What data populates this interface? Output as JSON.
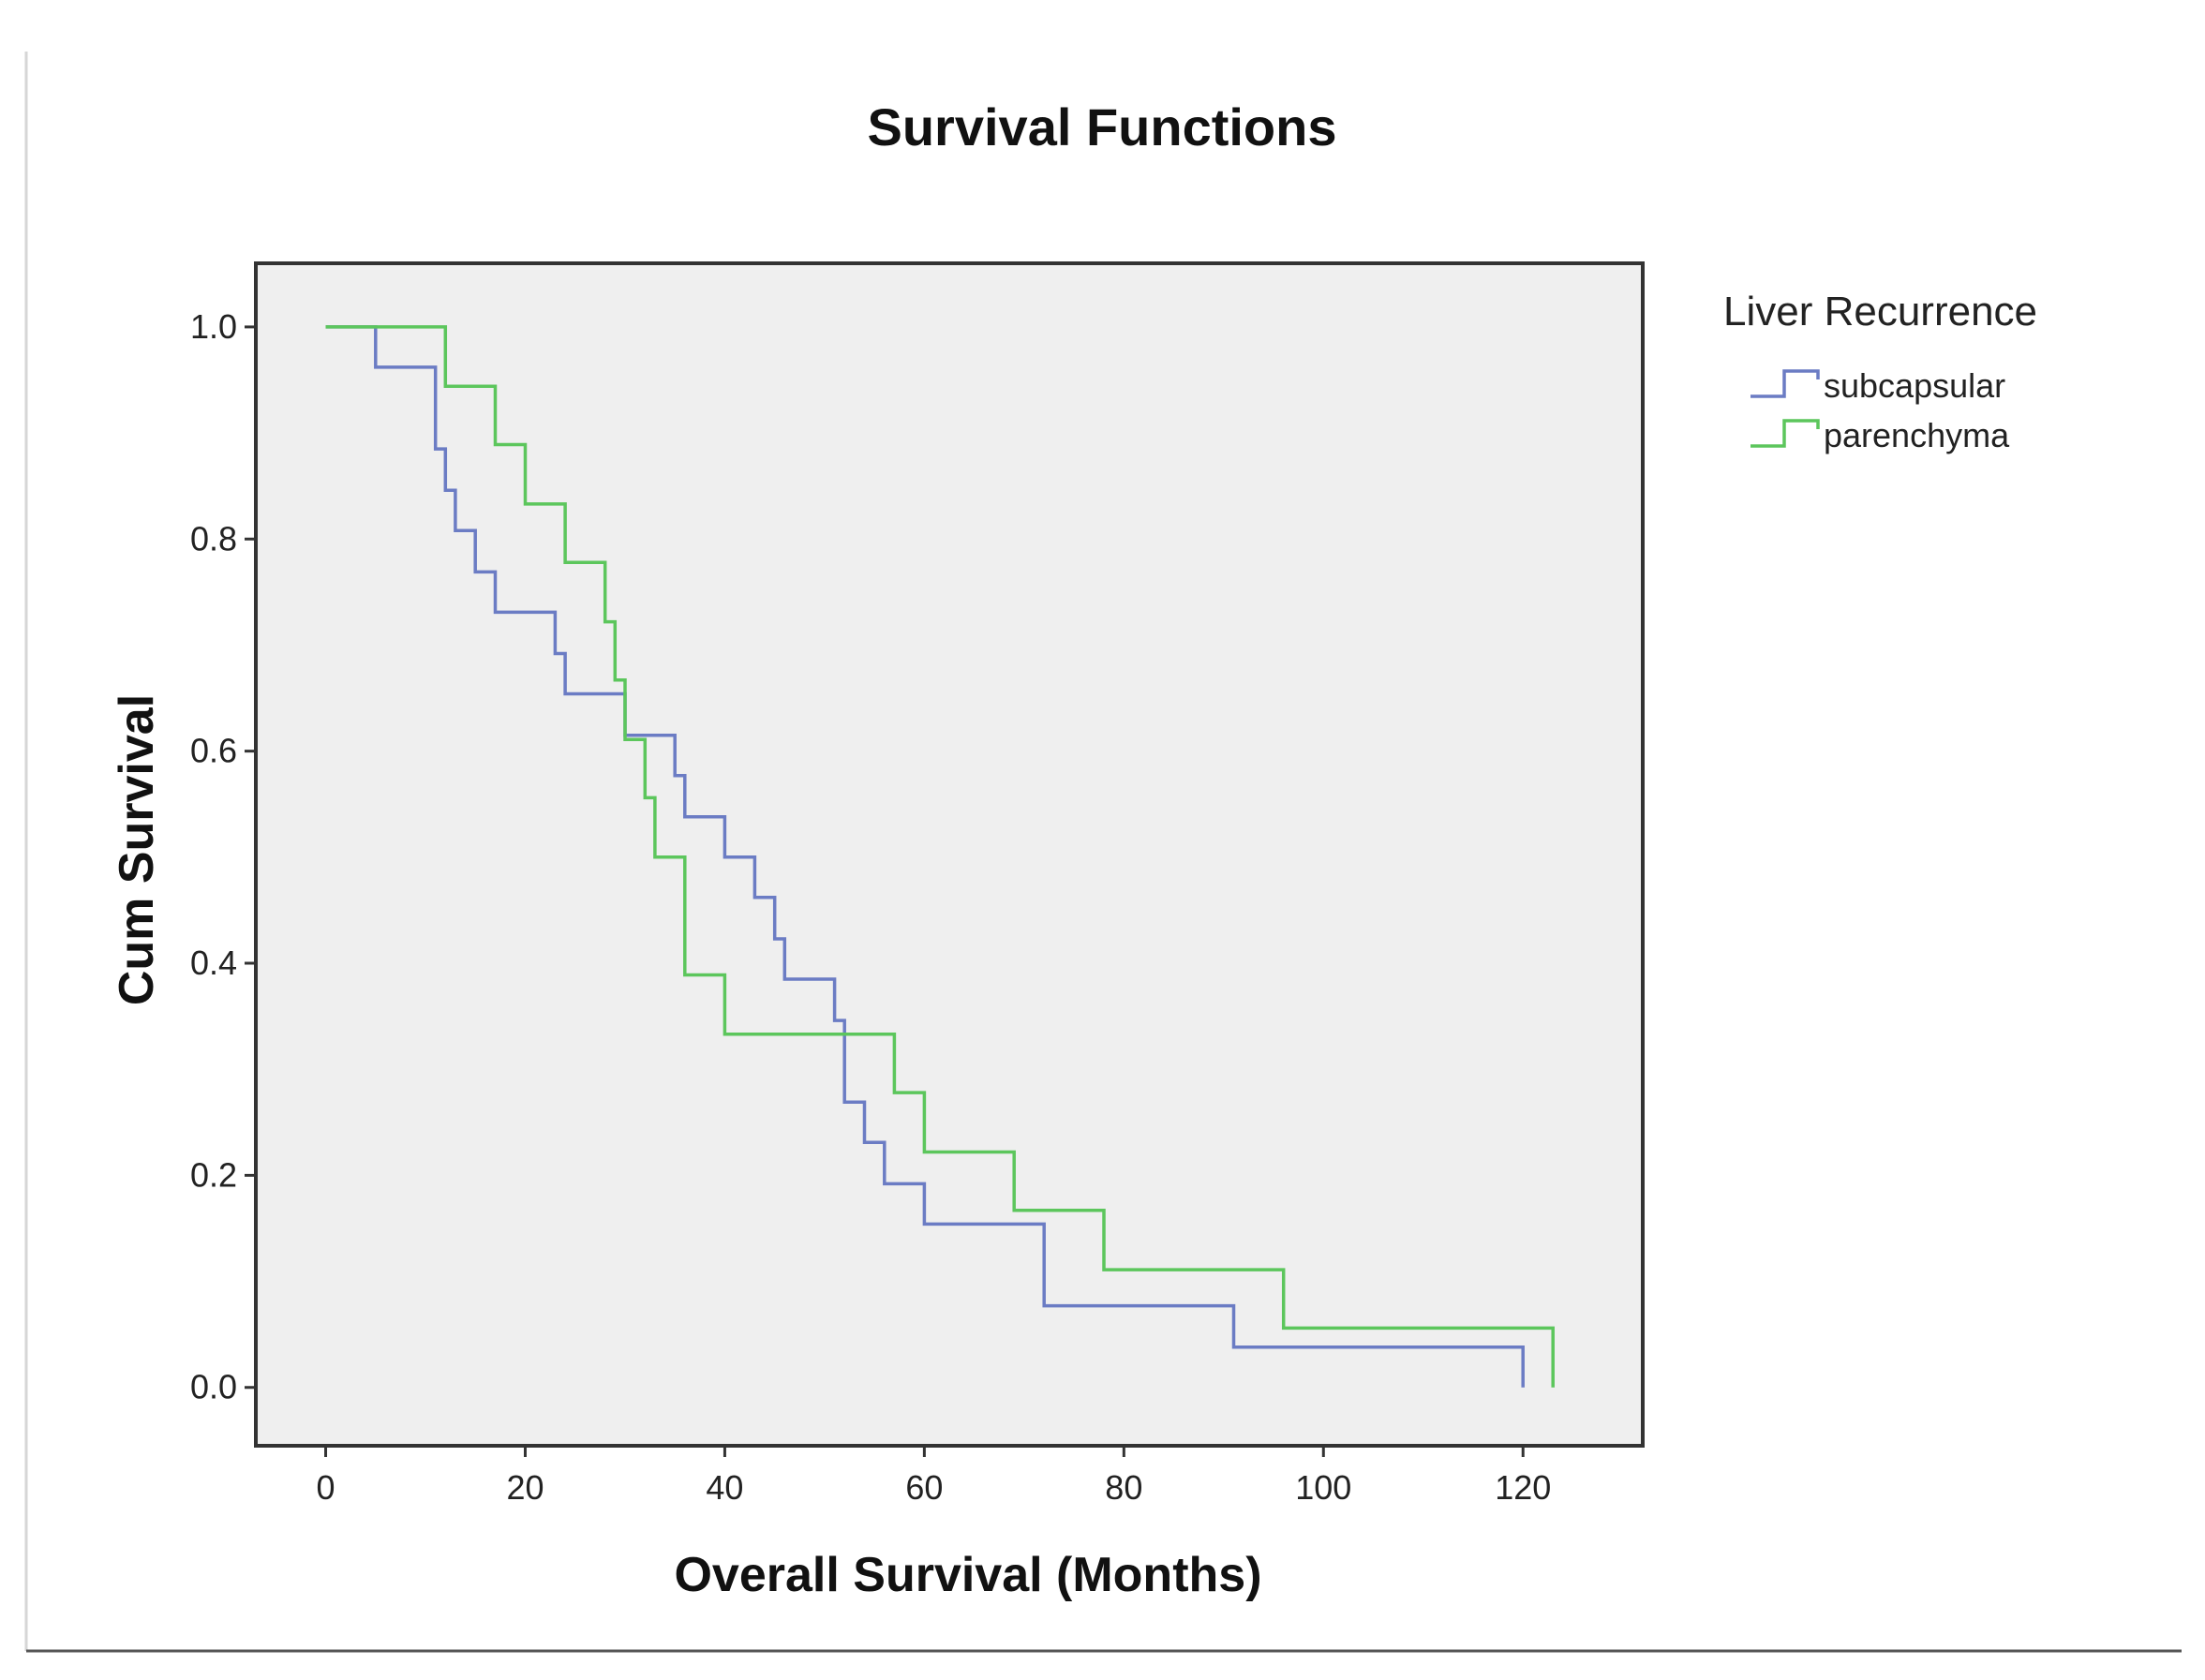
{
  "chart_data": {
    "type": "line",
    "subtype": "kaplan-meier-step",
    "title": "Survival Functions",
    "xlabel": "Overall Survival (Months)",
    "ylabel": "Cum Survival",
    "xlim": [
      -7,
      132
    ],
    "ylim": [
      -0.055,
      1.06
    ],
    "xticks": [
      0,
      20,
      40,
      60,
      80,
      100,
      120
    ],
    "xtick_labels": [
      "0",
      "20",
      "40",
      "60",
      "80",
      "100",
      "120"
    ],
    "yticks": [
      0.0,
      0.2,
      0.4,
      0.6,
      0.8,
      1.0
    ],
    "ytick_labels": [
      "0.0",
      "0.2",
      "0.4",
      "0.6",
      "0.8",
      "1.0"
    ],
    "grid": false,
    "legend": {
      "title": "Liver Recurrence",
      "position": "right"
    },
    "series": [
      {
        "name": "subcapsular",
        "color": "#6b7cc4",
        "points": [
          [
            0,
            1.0
          ],
          [
            5,
            1.0
          ],
          [
            5,
            0.962
          ],
          [
            11,
            0.962
          ],
          [
            11,
            0.885
          ],
          [
            12,
            0.885
          ],
          [
            12,
            0.846
          ],
          [
            13,
            0.846
          ],
          [
            13,
            0.808
          ],
          [
            15,
            0.808
          ],
          [
            15,
            0.769
          ],
          [
            17,
            0.769
          ],
          [
            17,
            0.731
          ],
          [
            23,
            0.731
          ],
          [
            23,
            0.692
          ],
          [
            24,
            0.692
          ],
          [
            24,
            0.654
          ],
          [
            30,
            0.654
          ],
          [
            30,
            0.615
          ],
          [
            35,
            0.615
          ],
          [
            35,
            0.577
          ],
          [
            36,
            0.577
          ],
          [
            36,
            0.538
          ],
          [
            40,
            0.538
          ],
          [
            40,
            0.5
          ],
          [
            43,
            0.5
          ],
          [
            43,
            0.462
          ],
          [
            45,
            0.462
          ],
          [
            45,
            0.423
          ],
          [
            46,
            0.423
          ],
          [
            46,
            0.385
          ],
          [
            51,
            0.385
          ],
          [
            51,
            0.346
          ],
          [
            52,
            0.346
          ],
          [
            52,
            0.269
          ],
          [
            54,
            0.269
          ],
          [
            54,
            0.231
          ],
          [
            56,
            0.231
          ],
          [
            56,
            0.192
          ],
          [
            60,
            0.192
          ],
          [
            60,
            0.154
          ],
          [
            72,
            0.154
          ],
          [
            72,
            0.077
          ],
          [
            91,
            0.077
          ],
          [
            91,
            0.038
          ],
          [
            120,
            0.038
          ],
          [
            120,
            0.0
          ]
        ]
      },
      {
        "name": "parenchyma",
        "color": "#5cc65c",
        "points": [
          [
            0,
            1.0
          ],
          [
            12,
            1.0
          ],
          [
            12,
            0.944
          ],
          [
            17,
            0.944
          ],
          [
            17,
            0.889
          ],
          [
            20,
            0.889
          ],
          [
            20,
            0.833
          ],
          [
            24,
            0.833
          ],
          [
            24,
            0.778
          ],
          [
            28,
            0.778
          ],
          [
            28,
            0.722
          ],
          [
            29,
            0.722
          ],
          [
            29,
            0.667
          ],
          [
            30,
            0.667
          ],
          [
            30,
            0.611
          ],
          [
            32,
            0.611
          ],
          [
            32,
            0.556
          ],
          [
            33,
            0.556
          ],
          [
            33,
            0.5
          ],
          [
            36,
            0.5
          ],
          [
            36,
            0.389
          ],
          [
            40,
            0.389
          ],
          [
            40,
            0.333
          ],
          [
            57,
            0.333
          ],
          [
            57,
            0.278
          ],
          [
            60,
            0.278
          ],
          [
            60,
            0.222
          ],
          [
            69,
            0.222
          ],
          [
            69,
            0.167
          ],
          [
            78,
            0.167
          ],
          [
            78,
            0.111
          ],
          [
            96,
            0.111
          ],
          [
            96,
            0.056
          ],
          [
            123,
            0.056
          ],
          [
            123,
            0.0
          ]
        ]
      }
    ]
  }
}
